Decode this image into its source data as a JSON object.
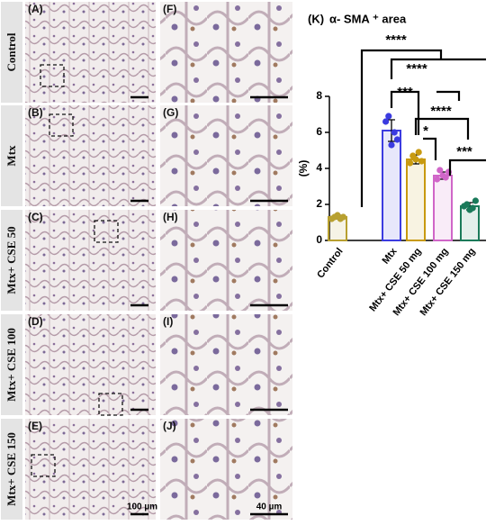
{
  "figure": {
    "row_labels": [
      "Control",
      "Mtx",
      "Mtx+ CSE  50",
      "Mtx+ CSE 100",
      "Mtx+ CSE 150"
    ],
    "left_panels": [
      "(A)",
      "(B)",
      "(C)",
      "(D)",
      "(E)"
    ],
    "right_panels": [
      "(F)",
      "(G)",
      "(H)",
      "(I)",
      "(J)"
    ],
    "scale_left": "100 µm",
    "scale_right": "40 µm"
  },
  "chart_data": {
    "type": "bar",
    "panel": "(K)",
    "title": "α- SMA ⁺ area",
    "y_label": "(%)",
    "categories": [
      "Control",
      "Mtx",
      "Mtx+ CSE 50 mg",
      "Mtx+ CSE 100 mg",
      "Mtx+ CSE 150 mg"
    ],
    "values": [
      1.3,
      6.1,
      4.5,
      3.6,
      1.9
    ],
    "errors": [
      0.1,
      0.6,
      0.25,
      0.2,
      0.2
    ],
    "points": [
      [
        1.2,
        1.3,
        1.4,
        1.2,
        1.3
      ],
      [
        6.6,
        6.9,
        5.3,
        6.0,
        5.6
      ],
      [
        4.3,
        4.7,
        4.5,
        4.9,
        4.4
      ],
      [
        3.4,
        3.9,
        3.6,
        3.5,
        3.8
      ],
      [
        1.9,
        2.0,
        1.7,
        1.8,
        2.2
      ]
    ],
    "colors": [
      "#b8a030",
      "#3b3be0",
      "#c89a10",
      "#d066c8",
      "#1a7a5a"
    ],
    "ylim": [
      0,
      8
    ],
    "yticks": [
      0,
      2,
      4,
      6,
      8
    ],
    "annotations": [
      "****",
      "****",
      "***",
      "****",
      "*",
      "***"
    ]
  }
}
